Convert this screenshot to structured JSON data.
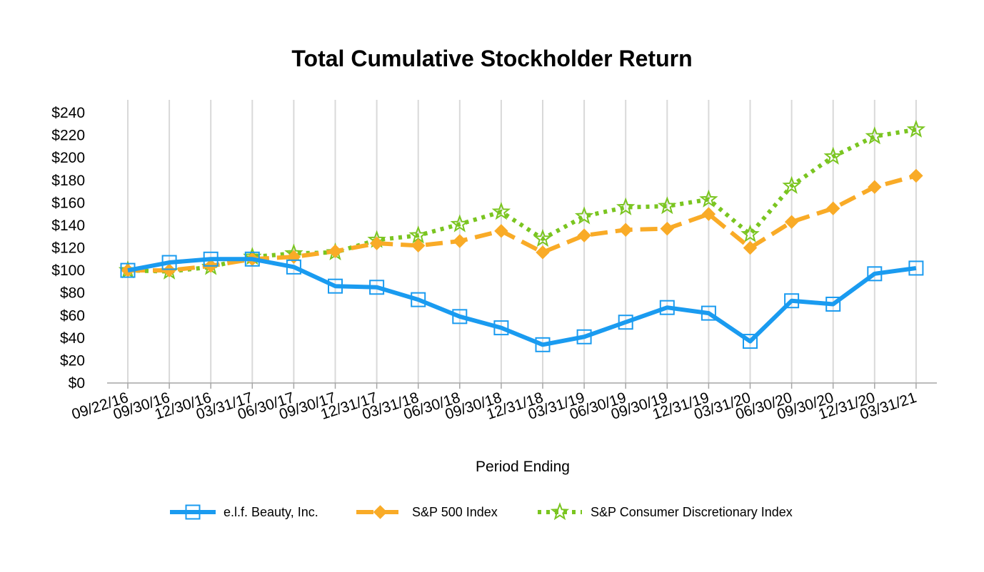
{
  "chart_data": {
    "type": "line",
    "title": "Total Cumulative Stockholder Return",
    "xlabel": "Period Ending",
    "ylabel": "",
    "ylim": [
      0,
      240
    ],
    "y_ticks": [
      "$0",
      "$20",
      "$40",
      "$60",
      "$80",
      "$100",
      "$120",
      "$140",
      "$160",
      "$180",
      "$200",
      "$220",
      "$240"
    ],
    "legend_position": "bottom",
    "grid": "vertical",
    "categories": [
      "09/22/16",
      "09/30/16",
      "12/30/16",
      "03/31/17",
      "06/30/17",
      "09/30/17",
      "12/31/17",
      "03/31/18",
      "06/30/18",
      "09/30/18",
      "12/31/18",
      "03/31/19",
      "06/30/19",
      "09/30/19",
      "12/31/19",
      "03/31/20",
      "06/30/20",
      "09/30/20",
      "12/31/20",
      "03/31/21"
    ],
    "series": [
      {
        "name": "e.l.f. Beauty, Inc.",
        "color": "#1a9bf0",
        "marker": "square",
        "line_style": "solid",
        "values": [
          100,
          107,
          110,
          110,
          103,
          86,
          85,
          74,
          59,
          49,
          34,
          41,
          54,
          67,
          62,
          37,
          73,
          70,
          97,
          102
        ]
      },
      {
        "name": "S&P 500 Index",
        "color": "#f9ab27",
        "marker": "diamond",
        "line_style": "dashed",
        "values": [
          100,
          100,
          104,
          110,
          112,
          117,
          124,
          122,
          126,
          135,
          116,
          131,
          136,
          137,
          150,
          120,
          143,
          155,
          174,
          184
        ]
      },
      {
        "name": "S&P Consumer Discretionary Index",
        "color": "#7ac520",
        "marker": "star",
        "line_style": "dotted",
        "values": [
          100,
          99,
          103,
          112,
          115,
          116,
          127,
          131,
          141,
          152,
          128,
          148,
          156,
          157,
          163,
          132,
          175,
          201,
          219,
          225
        ]
      }
    ]
  }
}
